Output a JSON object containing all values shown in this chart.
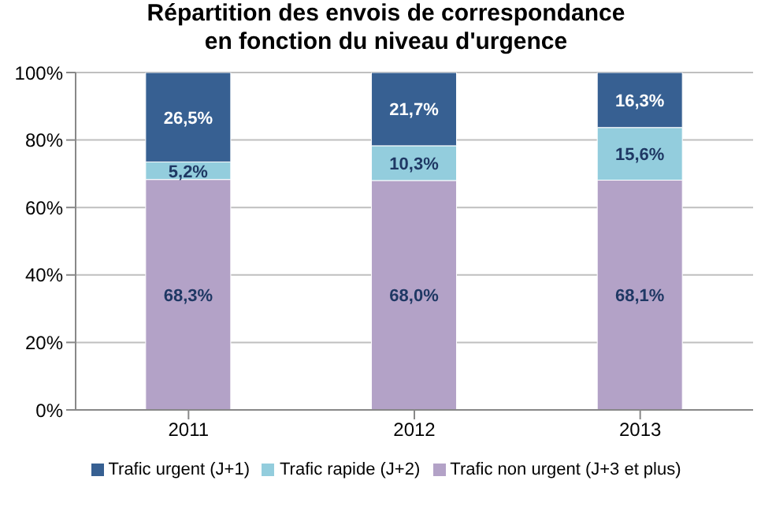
{
  "chart_data": {
    "type": "bar",
    "title": "Répartition des envois de correspondance en fonction du niveau d'urgence",
    "categories": [
      "2011",
      "2012",
      "2013"
    ],
    "stacked": true,
    "series": [
      {
        "name": "Trafic non urgent (J+3 et plus)",
        "color": "#b3a2c7",
        "values": [
          68.3,
          68.0,
          68.1
        ],
        "value_labels": [
          "68,3%",
          "68,0%",
          "68,1%"
        ]
      },
      {
        "name": "Trafic rapide (J+2)",
        "color": "#93cddd",
        "values": [
          5.2,
          10.3,
          15.6
        ],
        "value_labels": [
          "5,2%",
          "10,3%",
          "15,6%"
        ]
      },
      {
        "name": "Trafic urgent (J+1)",
        "color": "#376092",
        "values": [
          26.5,
          21.7,
          16.3
        ],
        "value_labels": [
          "26,5%",
          "21,7%",
          "16,3%"
        ]
      }
    ],
    "ylim": [
      0,
      100
    ],
    "yticks": [
      {
        "value": 0,
        "label": "0%"
      },
      {
        "value": 20,
        "label": "20%"
      },
      {
        "value": 40,
        "label": "40%"
      },
      {
        "value": 60,
        "label": "60%"
      },
      {
        "value": 80,
        "label": "80%"
      },
      {
        "value": 100,
        "label": "100%"
      }
    ],
    "grid": "y",
    "legend": "bottom"
  }
}
